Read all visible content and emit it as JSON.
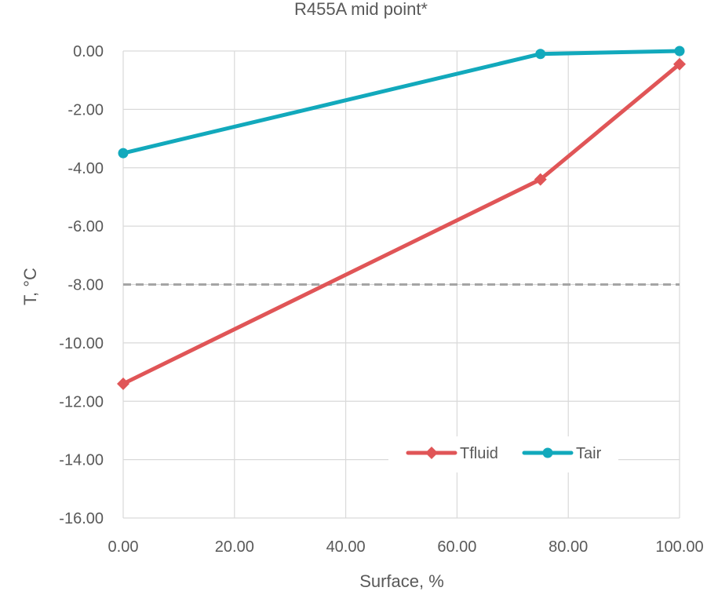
{
  "chart_data": {
    "type": "line",
    "title": "R455A mid point*",
    "xlabel": "Surface, %",
    "ylabel": "T, °C",
    "xlim": [
      0,
      100
    ],
    "ylim": [
      -16,
      0
    ],
    "x_ticks": [
      "0.00",
      "20.00",
      "40.00",
      "60.00",
      "80.00",
      "100.00"
    ],
    "y_ticks": [
      "0.00",
      "-2.00",
      "-4.00",
      "-6.00",
      "-8.00",
      "-10.00",
      "-12.00",
      "-14.00",
      "-16.00"
    ],
    "grid": true,
    "legend_position": "bottom-right",
    "reference_line": {
      "y": -8,
      "style": "dashed",
      "color": "#A5A5A5"
    },
    "series": [
      {
        "name": "Tfluid",
        "color": "#E05557",
        "marker": "diamond",
        "x": [
          0,
          75,
          100
        ],
        "y": [
          -11.4,
          -4.4,
          -0.45
        ]
      },
      {
        "name": "Tair",
        "color": "#12A9BC",
        "marker": "circle",
        "x": [
          0,
          75,
          100
        ],
        "y": [
          -3.5,
          -0.1,
          0
        ]
      }
    ]
  }
}
